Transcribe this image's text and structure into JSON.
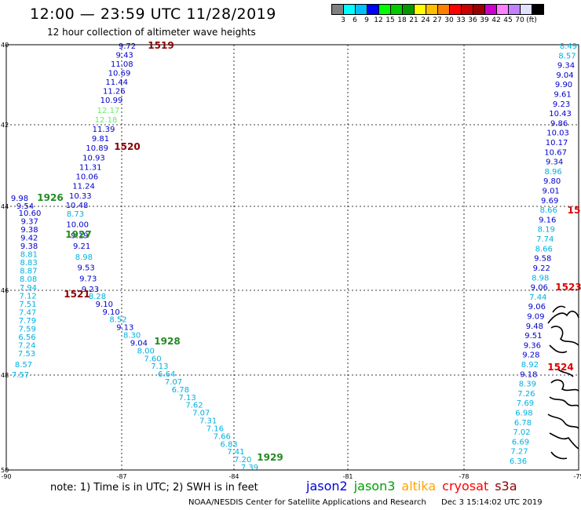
{
  "header": {
    "title": "12:00  —  23:59 UTC 11/28/2019",
    "subtitle": "12 hour collection of altimeter wave heights"
  },
  "scale": {
    "colors": [
      "#808080",
      "#00ffff",
      "#00bfff",
      "#0000ff",
      "#00ff00",
      "#00cc00",
      "#009900",
      "#ffff00",
      "#ffbf00",
      "#ff8000",
      "#ff0000",
      "#cc0000",
      "#990000",
      "#cc00cc",
      "#ff80ff",
      "#c080ff",
      "#e0e0ff",
      "#000000"
    ],
    "labels": [
      "3",
      "6",
      "9",
      "12",
      "15",
      "18",
      "21",
      "24",
      "27",
      "30",
      "33",
      "36",
      "39",
      "42",
      "45",
      "70",
      "(ft)"
    ]
  },
  "axes": {
    "lat_labels": [
      "40",
      "42",
      "44",
      "46",
      "48",
      "50"
    ],
    "lon_labels": [
      "-90",
      "-87",
      "-84",
      "-81",
      "-78",
      "-75"
    ]
  },
  "track_labels": [
    {
      "text": "1519",
      "color": "#8b0000"
    },
    {
      "text": "1520",
      "color": "#8b0000"
    },
    {
      "text": "1926",
      "color": "#228b22"
    },
    {
      "text": "1927",
      "color": "#228b22"
    },
    {
      "text": "1521",
      "color": "#8b0000"
    },
    {
      "text": "1928",
      "color": "#228b22"
    },
    {
      "text": "1929",
      "color": "#228b22"
    },
    {
      "text": "15",
      "color": "#dd0000"
    },
    {
      "text": "1523",
      "color": "#dd0000"
    },
    {
      "text": "1524",
      "color": "#dd0000"
    }
  ],
  "observations": {
    "track_a": [
      "9.72",
      "9.43",
      "11.08",
      "10.69",
      "11.44",
      "11.26",
      "10.99",
      "12.17",
      "12.18",
      "11.39",
      "9.81",
      "10.89",
      "10.93",
      "11.31",
      "10.06",
      "11.24",
      "10.33",
      "10.48",
      "8.73",
      "10.00",
      "9.19",
      "9.21",
      "8.98",
      "9.53",
      "9.73",
      "9.23",
      "8.28",
      "9.10",
      "9.10",
      "8.52",
      "9.13",
      "8.30",
      "9.04",
      "8.00",
      "7.60",
      "7.13",
      "6.64",
      "7.07",
      "6.78",
      "7.13",
      "7.62",
      "7.07",
      "7.31",
      "7.16",
      "7.66",
      "6.83",
      "7.41",
      "7.20",
      "7.39"
    ],
    "track_b": [
      "9.98",
      "9.54",
      "10.60",
      "9.37",
      "9.38",
      "9.42",
      "9.38",
      "8.81",
      "8.83",
      "8.87",
      "8.08",
      "7.94",
      "7.12",
      "7.51",
      "7.47",
      "7.79",
      "7.59",
      "6.56",
      "7.24",
      "7.53",
      "8.57",
      "7.57"
    ],
    "track_c": [
      "8.49",
      "8.57",
      "9.34",
      "9.04",
      "9.90",
      "9.61",
      "9.23",
      "10.43",
      "9.86",
      "10.03",
      "10.17",
      "10.67",
      "9.34",
      "8.96",
      "9.80",
      "9.01",
      "9.69",
      "8.66",
      "9.16",
      "8.19",
      "7.74",
      "8.66",
      "9.58",
      "9.22",
      "8.98",
      "9.06",
      "7.44",
      "9.06",
      "9.09",
      "9.48",
      "9.51",
      "9.36",
      "9.28",
      "8.92",
      "9.18",
      "8.39",
      "7.26",
      "7.69",
      "6.98",
      "6.78",
      "7.02",
      "6.69",
      "7.27",
      "6.36"
    ]
  },
  "note": "note:  1) Time is in UTC; 2) SWH is in feet",
  "legend": [
    {
      "label": "jason2",
      "color": "#0000dd"
    },
    {
      "label": "jason3",
      "color": "#00a000"
    },
    {
      "label": "altika",
      "color": "#ffa500"
    },
    {
      "label": "cryosat",
      "color": "#ff0000"
    },
    {
      "label": "s3a",
      "color": "#8b0000"
    }
  ],
  "footer": {
    "credit": "NOAA/NESDIS Center for Satellite Applications and Research",
    "timestamp": "Dec  3 15:14:02 UTC 2019"
  }
}
